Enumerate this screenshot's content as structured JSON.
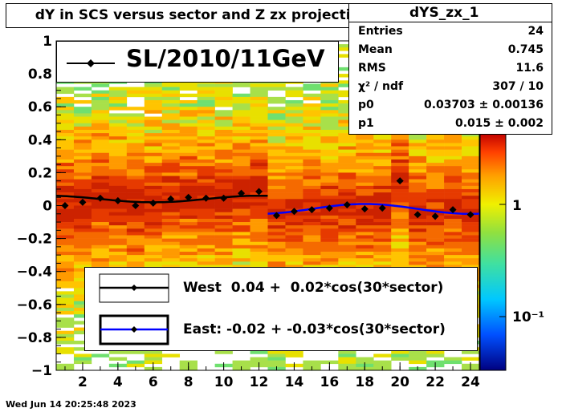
{
  "title": "dY in SCS versus sector and Z zx projection",
  "stats": {
    "name": "dYS_zx_1",
    "rows": [
      {
        "label": "Entries",
        "value": "24"
      },
      {
        "label": "Mean",
        "value": "0.745"
      },
      {
        "label": "RMS",
        "value": "11.6"
      },
      {
        "label": "χ² / ndf",
        "value": "307 / 10"
      },
      {
        "label": "p0",
        "value": "0.03703 ± 0.00136"
      },
      {
        "label": "p1",
        "value": "0.015 ± 0.002"
      }
    ]
  },
  "legend_top": {
    "label": "SL/2010/11GeV"
  },
  "legend_bottom": {
    "west": "West  0.04 +  0.02*cos(30*sector)",
    "east": "East: -0.02 + -0.03*cos(30*sector)"
  },
  "timestamp": "Wed Jun 14 20:25:48 2023",
  "colors": {
    "west_fit": "#000000",
    "east_fit": "#0000ff",
    "points": "#000000"
  },
  "chart_data": {
    "type": "scatter",
    "xlim": [
      0.5,
      24.5
    ],
    "ylim": [
      -1,
      1
    ],
    "x_ticks": [
      2,
      4,
      6,
      8,
      10,
      12,
      14,
      16,
      18,
      20,
      22,
      24
    ],
    "y_ticks": [
      -1,
      -0.8,
      -0.6,
      -0.4,
      -0.2,
      0,
      0.2,
      0.4,
      0.6,
      0.8,
      1
    ],
    "y_tick_labels": [
      "−1",
      "−0.8",
      "−0.6",
      "−0.4",
      "−0.2",
      "0",
      "0.2",
      "0.4",
      "0.6",
      "0.8",
      "1"
    ],
    "colorbar_labels": [
      "1",
      "10⁻¹"
    ],
    "x": [
      1,
      2,
      3,
      4,
      5,
      6,
      7,
      8,
      9,
      10,
      11,
      12,
      13,
      14,
      15,
      16,
      17,
      18,
      19,
      20,
      21,
      22,
      23,
      24
    ],
    "y": [
      0.0,
      0.02,
      0.045,
      0.03,
      0.0,
      0.015,
      0.04,
      0.05,
      0.045,
      0.045,
      0.075,
      0.085,
      -0.06,
      -0.035,
      -0.025,
      -0.015,
      0.005,
      -0.02,
      -0.015,
      0.15,
      -0.055,
      -0.065,
      -0.025,
      -0.055
    ],
    "series": [
      {
        "name": "West",
        "x_range": [
          0.5,
          12.5
        ],
        "p0": 0.04,
        "p1": 0.02
      },
      {
        "name": "East",
        "x_range": [
          12.5,
          24.5
        ],
        "p0": -0.02,
        "p1": -0.03
      }
    ]
  }
}
